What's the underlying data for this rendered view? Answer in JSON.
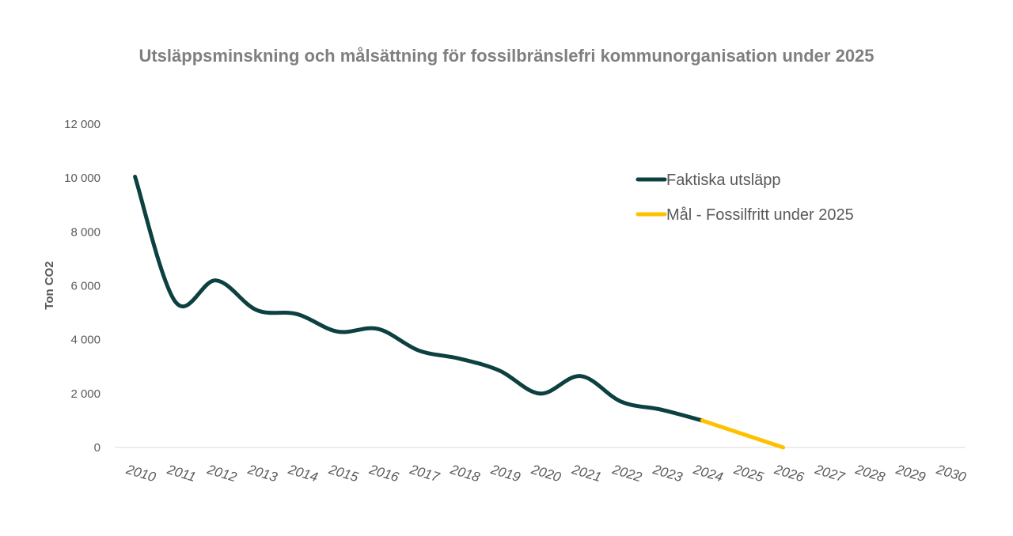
{
  "chart_data": {
    "type": "line",
    "title": "Utsläppsminskning och målsättning för fossilbränslefri kommunorganisation under 2025",
    "ylabel": "Ton CO2",
    "xlabel": "",
    "ylim": [
      0,
      12000
    ],
    "y_ticks": [
      "0",
      "2 000",
      "4 000",
      "6 000",
      "8 000",
      "10 000",
      "12 000"
    ],
    "y_tick_values": [
      0,
      2000,
      4000,
      6000,
      8000,
      10000,
      12000
    ],
    "categories": [
      "2010",
      "2011",
      "2012",
      "2013",
      "2014",
      "2015",
      "2016",
      "2017",
      "2018",
      "2019",
      "2020",
      "2021",
      "2022",
      "2023",
      "2024",
      "2025",
      "2026",
      "2027",
      "2028",
      "2029",
      "2030"
    ],
    "grid": false,
    "legend_position": "top-right",
    "series": [
      {
        "name": "Faktiska utsläpp",
        "color": "#0d4040",
        "values": [
          10050,
          5400,
          6200,
          5100,
          4950,
          4300,
          4400,
          3600,
          3300,
          2850,
          2000,
          2650,
          1700,
          1400,
          1000,
          null,
          null,
          null,
          null,
          null,
          null
        ]
      },
      {
        "name": "Mål - Fossilfritt under 2025",
        "color": "#ffc000",
        "values": [
          null,
          null,
          null,
          null,
          null,
          null,
          null,
          null,
          null,
          null,
          null,
          null,
          null,
          null,
          1000,
          500,
          0,
          null,
          null,
          null,
          null
        ]
      }
    ]
  }
}
